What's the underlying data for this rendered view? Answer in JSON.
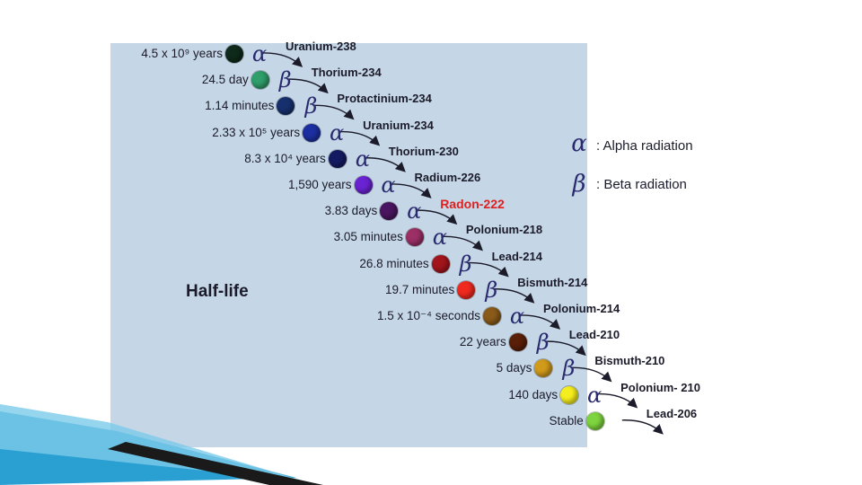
{
  "title": "Half-life",
  "legend": {
    "alpha_symbol": "α",
    "alpha_label": ": Alpha radiation",
    "beta_symbol": "β",
    "beta_label": ": Beta radiation"
  },
  "chain": [
    {
      "half_life": "4.5 x 10⁹ years",
      "color": "#0e2a1a",
      "decay": "α",
      "daughter": "Uranium-238"
    },
    {
      "half_life": "24.5 day",
      "color": "#2f9e6a",
      "decay": "β",
      "daughter": "Thorium-234"
    },
    {
      "half_life": "1.14 minutes",
      "color": "#16306e",
      "decay": "β",
      "daughter": "Protactinium-234"
    },
    {
      "half_life": "2.33 x 10⁵ years",
      "color": "#1c2fa0",
      "decay": "α",
      "daughter": "Uranium-234"
    },
    {
      "half_life": "8.3 x 10⁴ years",
      "color": "#141a62",
      "decay": "α",
      "daughter": "Thorium-230"
    },
    {
      "half_life": "1,590 years",
      "color": "#6a23d2",
      "decay": "α",
      "daughter": "Radium-226"
    },
    {
      "half_life": "3.83 days",
      "color": "#4a1560",
      "decay": "α",
      "daughter": "Radon-222",
      "highlight": true
    },
    {
      "half_life": "3.05 minutes",
      "color": "#9b2f66",
      "decay": "α",
      "daughter": "Polonium-218"
    },
    {
      "half_life": "26.8 minutes",
      "color": "#a3151c",
      "decay": "β",
      "daughter": "Lead-214"
    },
    {
      "half_life": "19.7 minutes",
      "color": "#f02a20",
      "decay": "β",
      "daughter": "Bismuth-214"
    },
    {
      "half_life": "1.5 x 10⁻⁴ seconds",
      "color": "#8a5a1a",
      "decay": "α",
      "daughter": "Polonium-214"
    },
    {
      "half_life": "22 years",
      "color": "#5a1f08",
      "decay": "β",
      "daughter": "Lead-210"
    },
    {
      "half_life": "5 days",
      "color": "#d19a1a",
      "decay": "β",
      "daughter": "Bismuth-210"
    },
    {
      "half_life": "140 days",
      "color": "#f5ee1e",
      "decay": "α",
      "daughter": "Polonium- 210"
    },
    {
      "half_life": "Stable",
      "color": "#7ed43e",
      "decay": "",
      "daughter": "Lead-206"
    }
  ]
}
